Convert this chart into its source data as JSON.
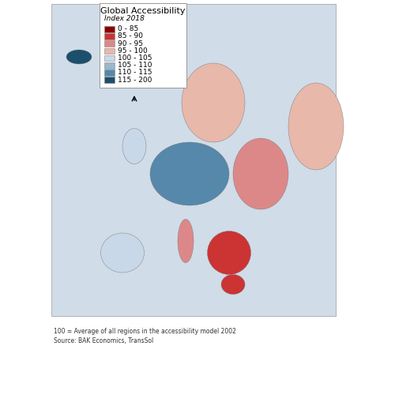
{
  "title": "Global Accessibility",
  "subtitle": "Index 2018",
  "legend_labels": [
    "0 - 85",
    "85 - 90",
    "90 - 95",
    "95 - 100",
    "100 - 105",
    "105 - 110",
    "110 - 115",
    "115 - 200"
  ],
  "legend_colors": [
    "#8B0000",
    "#CC3333",
    "#DD8888",
    "#E8B8AA",
    "#C8D8E8",
    "#99B8CC",
    "#5588AA",
    "#1C4F6B"
  ],
  "footer_line1": "100 = Average of all regions in the accessibility model 2002",
  "footer_line2": "Source: BAK Economics, TransSol",
  "background_color": "#FFFFFF",
  "map_extent": [
    -25,
    45,
    34,
    72
  ],
  "region_colors": {
    "Iceland": "#1C4F6B",
    "Norway": "#E8B8AA",
    "Sweden": "#E8B8AA",
    "Finland": "#EECCC0",
    "Denmark": "#99B8CC",
    "United Kingdom": "#C8D8E8",
    "Ireland": "#DD8888",
    "France": "#C8D8E8",
    "Spain": "#C8D8E8",
    "Portugal": "#C8D8E8",
    "Germany": "#5588AA",
    "Netherlands": "#5588AA",
    "Belgium": "#5588AA",
    "Luxembourg": "#5588AA",
    "Switzerland": "#5588AA",
    "Austria": "#5588AA",
    "Italy": "#DD8888",
    "Poland": "#99B8CC",
    "Czech Republic": "#5588AA",
    "Slovakia": "#99B8CC",
    "Hungary": "#99B8CC",
    "Romania": "#CC3333",
    "Bulgaria": "#CC3333",
    "Greece": "#CC3333",
    "Croatia": "#CC3333",
    "Slovenia": "#99B8CC",
    "Serbia": "#CC3333",
    "Bosnia and Herzegovina": "#CC3333",
    "Albania": "#8B0000",
    "North Macedonia": "#CC3333",
    "Montenegro": "#CC3333",
    "Kosovo": "#CC3333",
    "Estonia": "#99B8CC",
    "Latvia": "#99B8CC",
    "Lithuania": "#99B8CC",
    "Belarus": "#DD8888",
    "Ukraine": "#DD8888",
    "Moldova": "#DD8888",
    "Russia": "#E8B8AA",
    "Turkey": "#CC3333"
  },
  "fig_width": 5.0,
  "fig_height": 5.0,
  "dpi": 100
}
